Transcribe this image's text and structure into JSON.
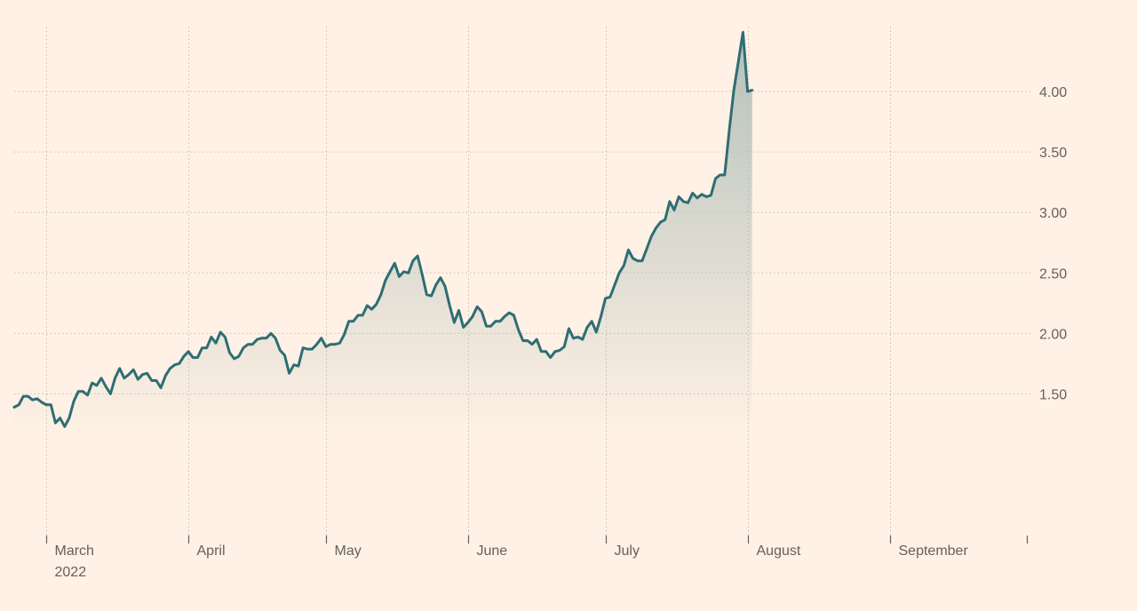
{
  "chart_data": {
    "type": "area",
    "title": "",
    "xlabel": "",
    "ylabel": "",
    "x_range": [
      "2022-02-22",
      "2022-10-01"
    ],
    "y_range": [
      0.75,
      4.55
    ],
    "y_axis_position": "right",
    "y_ticks": [
      {
        "value": 1.5,
        "label": "1.50"
      },
      {
        "value": 2.0,
        "label": "2.00"
      },
      {
        "value": 2.5,
        "label": "2.50"
      },
      {
        "value": 3.0,
        "label": "3.00"
      },
      {
        "value": 3.5,
        "label": "3.50"
      },
      {
        "value": 4.0,
        "label": "4.00"
      }
    ],
    "x_ticks": [
      {
        "date": "2022-03-01",
        "label": "March",
        "sublabel": "2022"
      },
      {
        "date": "2022-04-01",
        "label": "April",
        "sublabel": ""
      },
      {
        "date": "2022-05-01",
        "label": "May",
        "sublabel": ""
      },
      {
        "date": "2022-06-01",
        "label": "June",
        "sublabel": ""
      },
      {
        "date": "2022-07-01",
        "label": "July",
        "sublabel": ""
      },
      {
        "date": "2022-08-01",
        "label": "August",
        "sublabel": ""
      },
      {
        "date": "2022-09-01",
        "label": "September",
        "sublabel": ""
      },
      {
        "date": "2022-10-01",
        "label": "",
        "sublabel": ""
      }
    ],
    "grid": true,
    "colors": {
      "line": "#2e6e73",
      "fill": "#a7b9b2"
    },
    "series": [
      {
        "name": "",
        "points": [
          [
            "2022-02-22",
            1.39
          ],
          [
            "2022-02-23",
            1.41
          ],
          [
            "2022-02-24",
            1.48
          ],
          [
            "2022-02-25",
            1.48
          ],
          [
            "2022-02-26",
            1.45
          ],
          [
            "2022-02-27",
            1.46
          ],
          [
            "2022-02-28",
            1.43
          ],
          [
            "2022-03-01",
            1.41
          ],
          [
            "2022-03-02",
            1.41
          ],
          [
            "2022-03-03",
            1.26
          ],
          [
            "2022-03-04",
            1.3
          ],
          [
            "2022-03-05",
            1.23
          ],
          [
            "2022-03-06",
            1.3
          ],
          [
            "2022-03-07",
            1.44
          ],
          [
            "2022-03-08",
            1.52
          ],
          [
            "2022-03-09",
            1.52
          ],
          [
            "2022-03-10",
            1.49
          ],
          [
            "2022-03-11",
            1.59
          ],
          [
            "2022-03-12",
            1.57
          ],
          [
            "2022-03-13",
            1.63
          ],
          [
            "2022-03-14",
            1.56
          ],
          [
            "2022-03-15",
            1.5
          ],
          [
            "2022-03-16",
            1.63
          ],
          [
            "2022-03-17",
            1.71
          ],
          [
            "2022-03-18",
            1.63
          ],
          [
            "2022-03-19",
            1.66
          ],
          [
            "2022-03-20",
            1.7
          ],
          [
            "2022-03-21",
            1.62
          ],
          [
            "2022-03-22",
            1.66
          ],
          [
            "2022-03-23",
            1.67
          ],
          [
            "2022-03-24",
            1.61
          ],
          [
            "2022-03-25",
            1.61
          ],
          [
            "2022-03-26",
            1.55
          ],
          [
            "2022-03-27",
            1.65
          ],
          [
            "2022-03-28",
            1.71
          ],
          [
            "2022-03-29",
            1.74
          ],
          [
            "2022-03-30",
            1.75
          ],
          [
            "2022-03-31",
            1.81
          ],
          [
            "2022-04-01",
            1.85
          ],
          [
            "2022-04-02",
            1.8
          ],
          [
            "2022-04-03",
            1.8
          ],
          [
            "2022-04-04",
            1.88
          ],
          [
            "2022-04-05",
            1.88
          ],
          [
            "2022-04-06",
            1.97
          ],
          [
            "2022-04-07",
            1.92
          ],
          [
            "2022-04-08",
            2.01
          ],
          [
            "2022-04-09",
            1.97
          ],
          [
            "2022-04-10",
            1.84
          ],
          [
            "2022-04-11",
            1.79
          ],
          [
            "2022-04-12",
            1.81
          ],
          [
            "2022-04-13",
            1.88
          ],
          [
            "2022-04-14",
            1.91
          ],
          [
            "2022-04-15",
            1.91
          ],
          [
            "2022-04-16",
            1.95
          ],
          [
            "2022-04-17",
            1.96
          ],
          [
            "2022-04-18",
            1.96
          ],
          [
            "2022-04-19",
            2.0
          ],
          [
            "2022-04-20",
            1.96
          ],
          [
            "2022-04-21",
            1.86
          ],
          [
            "2022-04-22",
            1.82
          ],
          [
            "2022-04-23",
            1.67
          ],
          [
            "2022-04-24",
            1.74
          ],
          [
            "2022-04-25",
            1.73
          ],
          [
            "2022-04-26",
            1.88
          ],
          [
            "2022-04-27",
            1.87
          ],
          [
            "2022-04-28",
            1.87
          ],
          [
            "2022-04-29",
            1.91
          ],
          [
            "2022-04-30",
            1.96
          ],
          [
            "2022-05-01",
            1.89
          ],
          [
            "2022-05-02",
            1.91
          ],
          [
            "2022-05-03",
            1.91
          ],
          [
            "2022-05-04",
            1.92
          ],
          [
            "2022-05-05",
            1.99
          ],
          [
            "2022-05-06",
            2.1
          ],
          [
            "2022-05-07",
            2.1
          ],
          [
            "2022-05-08",
            2.15
          ],
          [
            "2022-05-09",
            2.15
          ],
          [
            "2022-05-10",
            2.23
          ],
          [
            "2022-05-11",
            2.2
          ],
          [
            "2022-05-12",
            2.24
          ],
          [
            "2022-05-13",
            2.32
          ],
          [
            "2022-05-14",
            2.44
          ],
          [
            "2022-05-15",
            2.51
          ],
          [
            "2022-05-16",
            2.58
          ],
          [
            "2022-05-17",
            2.47
          ],
          [
            "2022-05-18",
            2.51
          ],
          [
            "2022-05-19",
            2.5
          ],
          [
            "2022-05-20",
            2.6
          ],
          [
            "2022-05-21",
            2.64
          ],
          [
            "2022-05-22",
            2.49
          ],
          [
            "2022-05-23",
            2.32
          ],
          [
            "2022-05-24",
            2.31
          ],
          [
            "2022-05-25",
            2.4
          ],
          [
            "2022-05-26",
            2.46
          ],
          [
            "2022-05-27",
            2.39
          ],
          [
            "2022-05-28",
            2.23
          ],
          [
            "2022-05-29",
            2.09
          ],
          [
            "2022-05-30",
            2.19
          ],
          [
            "2022-05-31",
            2.05
          ],
          [
            "2022-06-01",
            2.09
          ],
          [
            "2022-06-02",
            2.14
          ],
          [
            "2022-06-03",
            2.22
          ],
          [
            "2022-06-04",
            2.18
          ],
          [
            "2022-06-05",
            2.06
          ],
          [
            "2022-06-06",
            2.06
          ],
          [
            "2022-06-07",
            2.1
          ],
          [
            "2022-06-08",
            2.1
          ],
          [
            "2022-06-09",
            2.14
          ],
          [
            "2022-06-10",
            2.17
          ],
          [
            "2022-06-11",
            2.15
          ],
          [
            "2022-06-12",
            2.03
          ],
          [
            "2022-06-13",
            1.94
          ],
          [
            "2022-06-14",
            1.94
          ],
          [
            "2022-06-15",
            1.91
          ],
          [
            "2022-06-16",
            1.95
          ],
          [
            "2022-06-17",
            1.85
          ],
          [
            "2022-06-18",
            1.85
          ],
          [
            "2022-06-19",
            1.8
          ],
          [
            "2022-06-20",
            1.85
          ],
          [
            "2022-06-21",
            1.86
          ],
          [
            "2022-06-22",
            1.89
          ],
          [
            "2022-06-23",
            2.04
          ],
          [
            "2022-06-24",
            1.96
          ],
          [
            "2022-06-25",
            1.97
          ],
          [
            "2022-06-26",
            1.95
          ],
          [
            "2022-06-27",
            2.05
          ],
          [
            "2022-06-28",
            2.1
          ],
          [
            "2022-06-29",
            2.01
          ],
          [
            "2022-06-30",
            2.14
          ],
          [
            "2022-07-01",
            2.29
          ],
          [
            "2022-07-02",
            2.3
          ],
          [
            "2022-07-03",
            2.4
          ],
          [
            "2022-07-04",
            2.5
          ],
          [
            "2022-07-05",
            2.56
          ],
          [
            "2022-07-06",
            2.69
          ],
          [
            "2022-07-07",
            2.62
          ],
          [
            "2022-07-08",
            2.6
          ],
          [
            "2022-07-09",
            2.6
          ],
          [
            "2022-07-10",
            2.7
          ],
          [
            "2022-07-11",
            2.8
          ],
          [
            "2022-07-12",
            2.87
          ],
          [
            "2022-07-13",
            2.92
          ],
          [
            "2022-07-14",
            2.94
          ],
          [
            "2022-07-15",
            3.09
          ],
          [
            "2022-07-16",
            3.02
          ],
          [
            "2022-07-17",
            3.13
          ],
          [
            "2022-07-18",
            3.09
          ],
          [
            "2022-07-19",
            3.08
          ],
          [
            "2022-07-20",
            3.16
          ],
          [
            "2022-07-21",
            3.12
          ],
          [
            "2022-07-22",
            3.15
          ],
          [
            "2022-07-23",
            3.13
          ],
          [
            "2022-07-24",
            3.14
          ],
          [
            "2022-07-25",
            3.28
          ],
          [
            "2022-07-26",
            3.31
          ],
          [
            "2022-07-27",
            3.31
          ],
          [
            "2022-07-28",
            3.68
          ],
          [
            "2022-07-29",
            4.01
          ],
          [
            "2022-07-30",
            4.25
          ],
          [
            "2022-07-31",
            4.49
          ],
          [
            "2022-08-01",
            4.0
          ],
          [
            "2022-08-02",
            4.01
          ]
        ]
      }
    ]
  }
}
